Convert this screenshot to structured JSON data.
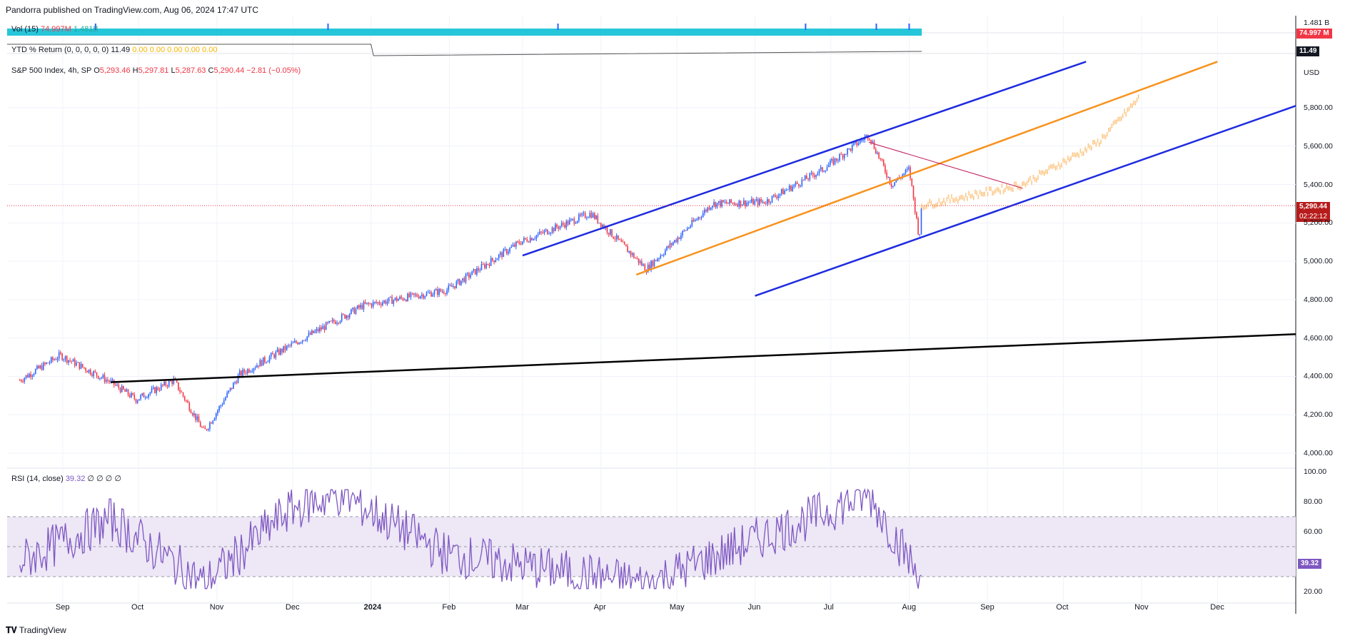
{
  "header": {
    "publisher": "Pandorra published on TradingView.com, Aug 06, 2024 17:47 UTC"
  },
  "volume": {
    "label": "Vol (15)",
    "value_a": "74.997M",
    "value_b": "1.481B",
    "scale_top": "1.481 B",
    "scale_tag": "74.997 M",
    "colors": {
      "bar": "#26c6da",
      "tag": "#f23645",
      "spike": "#2962ff"
    }
  },
  "ytd": {
    "label": "YTD % Return (0, 0, 0, 0, 0)",
    "value": "11.49",
    "extra": "0.00 0.00 0.00 0.00 0.00",
    "tag": "11.49",
    "colors": {
      "line": "#555",
      "text": "#f7b500"
    }
  },
  "main": {
    "symbol": "S&P 500 Index, 4h, SP",
    "ohlc_o_label": "O",
    "ohlc_o": "5,293.46",
    "ohlc_h_label": "H",
    "ohlc_h": "5,297.81",
    "ohlc_l_label": "L",
    "ohlc_l": "5,287.63",
    "ohlc_c_label": "C",
    "ohlc_c": "5,290.44",
    "change": "−2.81 (−0.05%)",
    "currency": "USD",
    "price_tag": "5,290.44",
    "countdown": "02:22:12",
    "price_ticks": [
      "5,800.00",
      "5,600.00",
      "5,400.00",
      "5,200.00",
      "5,000.00",
      "4,800.00",
      "4,600.00",
      "4,400.00",
      "4,200.00",
      "4,000.00"
    ],
    "colors": {
      "up": "#2962ff",
      "down": "#f23645",
      "channel": "#1e2be0",
      "orange": "#f7931e",
      "projection": "#fcc98a",
      "trend": "#000000",
      "redline": "#c2185b"
    }
  },
  "rsi": {
    "label": "RSI (14, close)",
    "value": "39.32",
    "extra": "∅ ∅ ∅ ∅",
    "tag": "39.32",
    "ticks": [
      "100.00",
      "80.00",
      "60.00",
      "20.00"
    ],
    "colors": {
      "line": "#7e57c2",
      "band": "#ede7f6",
      "ob": "#b2dfb5"
    }
  },
  "time_axis": [
    "Sep",
    "Oct",
    "Nov",
    "Dec",
    "2024",
    "Feb",
    "Mar",
    "Apr",
    "May",
    "Jun",
    "Jul",
    "Aug",
    "Sep",
    "Oct",
    "Nov",
    "Dec"
  ],
  "footer": {
    "brand": "TradingView"
  },
  "chart_data": {
    "type": "line",
    "title": "S&P 500 Index, 4h, SP",
    "x": [
      "2023-08-15",
      "2023-08-31",
      "2023-09-20",
      "2023-09-30",
      "2023-10-15",
      "2023-10-27",
      "2023-11-10",
      "2023-11-30",
      "2023-12-29",
      "2024-01-31",
      "2024-02-29",
      "2024-03-28",
      "2024-04-19",
      "2024-05-15",
      "2024-06-05",
      "2024-06-28",
      "2024-07-16",
      "2024-07-25",
      "2024-08-01",
      "2024-08-05",
      "2024-08-06"
    ],
    "series": [
      {
        "values": [
          4380,
          4510,
          4370,
          4280,
          4380,
          4110,
          4410,
          4560,
          4770,
          4850,
          5100,
          5250,
          4960,
          5300,
          5310,
          5480,
          5660,
          5400,
          5480,
          5120,
          5290
        ]
      }
    ],
    "projection": {
      "x": [
        "2024-08-06",
        "2024-09-15",
        "2024-10-15",
        "2024-10-31"
      ],
      "values": [
        5290,
        5400,
        5620,
        5850
      ]
    },
    "rsi": {
      "x": [
        "2023-08-15",
        "2023-09-20",
        "2023-10-27",
        "2023-11-30",
        "2023-12-20",
        "2024-01-31",
        "2024-04-19",
        "2024-07-16",
        "2024-08-05",
        "2024-08-06"
      ],
      "values": [
        40,
        68,
        25,
        75,
        85,
        45,
        25,
        85,
        30,
        39.32
      ]
    },
    "ylim": [
      3950,
      6000
    ],
    "xlabel": "",
    "ylabel": "",
    "grid": true,
    "legend": "none"
  }
}
